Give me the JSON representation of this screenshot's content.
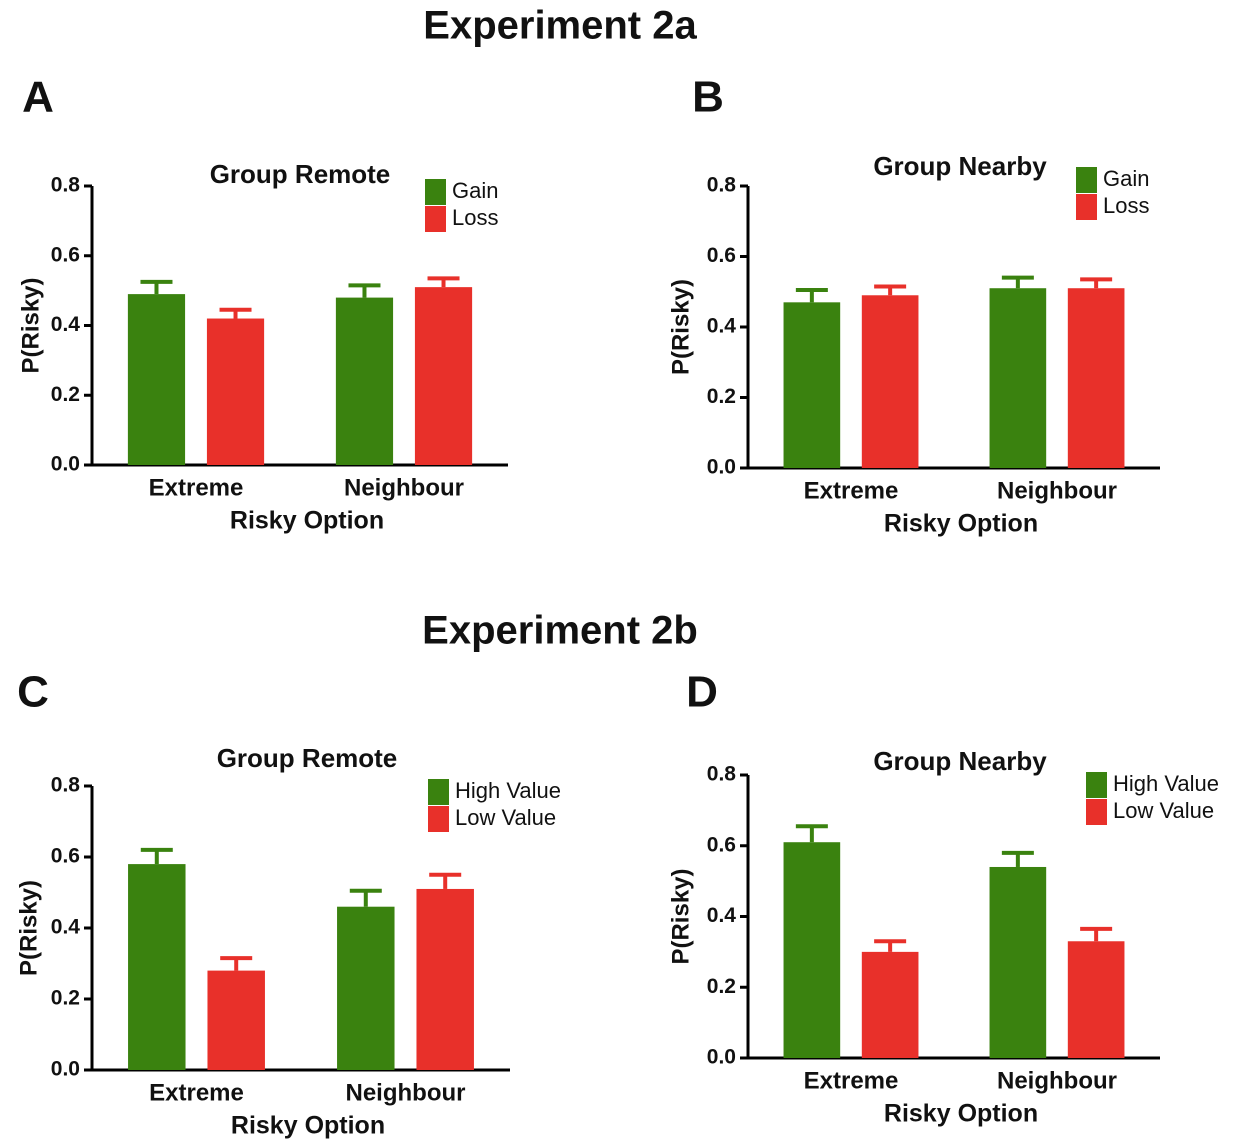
{
  "headings": [
    "Experiment 2a",
    "Experiment 2b"
  ],
  "chart_data": [
    {
      "type": "bar",
      "panel": "A",
      "title": "Group Remote",
      "x_label": "Risky Option",
      "y_label": "P(Risky)",
      "categories": [
        "Extreme",
        "Neighbour"
      ],
      "series": [
        {
          "name": "Gain",
          "color": "#3a820f",
          "values": [
            0.49,
            0.48
          ],
          "errors": [
            0.035,
            0.035
          ]
        },
        {
          "name": "Loss",
          "color": "#e8302a",
          "values": [
            0.42,
            0.51
          ],
          "errors": [
            0.025,
            0.025
          ]
        }
      ],
      "ylim": [
        0,
        0.8
      ],
      "yticks": [
        {
          "value": 0,
          "label": "0.0"
        },
        {
          "value": 0.2,
          "label": "0.2"
        },
        {
          "value": 0.4,
          "label": "0.4"
        },
        {
          "value": 0.6,
          "label": "0.6"
        },
        {
          "value": 0.8,
          "label": "0.8"
        }
      ]
    },
    {
      "type": "bar",
      "panel": "B",
      "title": "Group Nearby",
      "x_label": "Risky Option",
      "y_label": "P(Risky)",
      "categories": [
        "Extreme",
        "Neighbour"
      ],
      "series": [
        {
          "name": "Gain",
          "color": "#3a820f",
          "values": [
            0.47,
            0.51
          ],
          "errors": [
            0.035,
            0.03
          ]
        },
        {
          "name": "Loss",
          "color": "#e8302a",
          "values": [
            0.49,
            0.51
          ],
          "errors": [
            0.025,
            0.025
          ]
        }
      ],
      "ylim": [
        0,
        0.8
      ],
      "yticks": [
        {
          "value": 0,
          "label": "0.0"
        },
        {
          "value": 0.2,
          "label": "0.2"
        },
        {
          "value": 0.4,
          "label": "0.4"
        },
        {
          "value": 0.6,
          "label": "0.6"
        },
        {
          "value": 0.8,
          "label": "0.8"
        }
      ]
    },
    {
      "type": "bar",
      "panel": "C",
      "title": "Group Remote",
      "x_label": "Risky Option",
      "y_label": "P(Risky)",
      "categories": [
        "Extreme",
        "Neighbour"
      ],
      "series": [
        {
          "name": "High Value",
          "color": "#3a820f",
          "values": [
            0.58,
            0.46
          ],
          "errors": [
            0.04,
            0.045
          ]
        },
        {
          "name": "Low Value",
          "color": "#e8302a",
          "values": [
            0.28,
            0.51
          ],
          "errors": [
            0.035,
            0.04
          ]
        }
      ],
      "ylim": [
        0,
        0.8
      ],
      "yticks": [
        {
          "value": 0,
          "label": "0.0"
        },
        {
          "value": 0.2,
          "label": "0.2"
        },
        {
          "value": 0.4,
          "label": "0.4"
        },
        {
          "value": 0.6,
          "label": "0.6"
        },
        {
          "value": 0.8,
          "label": "0.8"
        }
      ]
    },
    {
      "type": "bar",
      "panel": "D",
      "title": "Group Nearby",
      "x_label": "Risky Option",
      "y_label": "P(Risky)",
      "categories": [
        "Extreme",
        "Neighbour"
      ],
      "series": [
        {
          "name": "High Value",
          "color": "#3a820f",
          "values": [
            0.61,
            0.54
          ],
          "errors": [
            0.045,
            0.04
          ]
        },
        {
          "name": "Low Value",
          "color": "#e8302a",
          "values": [
            0.3,
            0.33
          ],
          "errors": [
            0.03,
            0.035
          ]
        }
      ],
      "ylim": [
        0,
        0.8
      ],
      "yticks": [
        {
          "value": 0,
          "label": "0.0"
        },
        {
          "value": 0.2,
          "label": "0.2"
        },
        {
          "value": 0.4,
          "label": "0.4"
        },
        {
          "value": 0.6,
          "label": "0.6"
        },
        {
          "value": 0.8,
          "label": "0.8"
        }
      ]
    }
  ]
}
